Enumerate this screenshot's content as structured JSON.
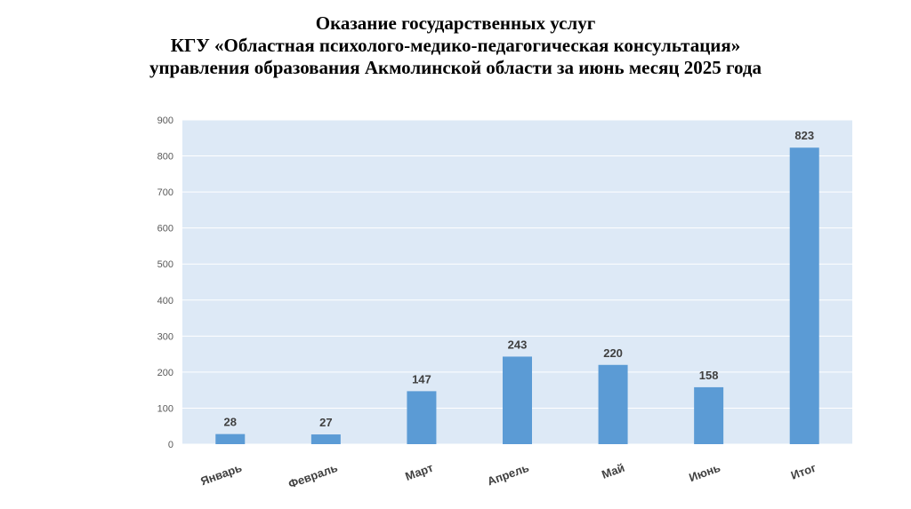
{
  "chart_data": {
    "type": "bar",
    "title": [
      "Оказание государственных услуг",
      "КГУ «Областная психолого-медико-педагогическая консультация»",
      "управления образования Акмолинской области за июнь месяц 2025 года"
    ],
    "categories": [
      "Январь",
      "Февраль",
      "Март",
      "Апрель",
      "Май",
      "Июнь",
      "Итог"
    ],
    "values": [
      28,
      27,
      147,
      243,
      220,
      158,
      823
    ],
    "ylim": [
      0,
      900
    ],
    "yticks": [
      0,
      100,
      200,
      300,
      400,
      500,
      600,
      700,
      800,
      900
    ],
    "grid": true,
    "data_labels": true,
    "colors": {
      "bar": "#5b9bd5",
      "plot_background": "#dde9f6",
      "gridline": "#ffffff"
    }
  }
}
